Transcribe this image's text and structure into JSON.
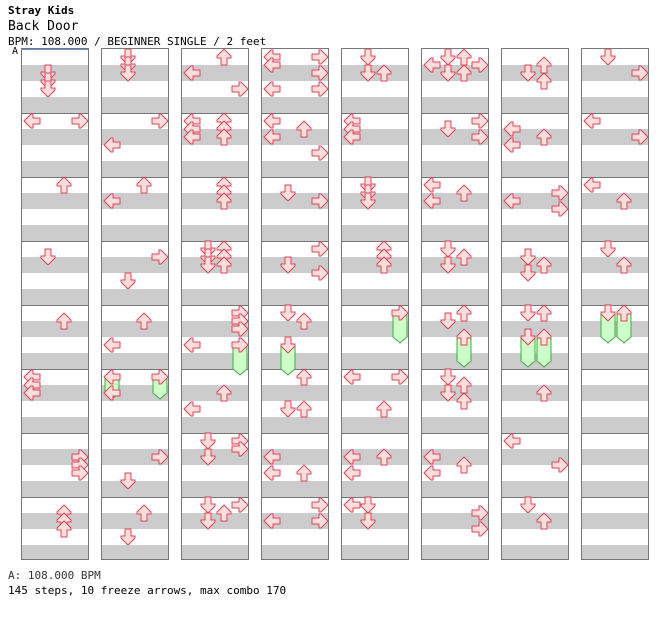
{
  "header": {
    "artist": "Stray Kids",
    "title": "Back Door",
    "meta": "BPM: 108.000 / BEGINNER SINGLE / 2 feet"
  },
  "bpm_marker": {
    "label": "A"
  },
  "footer": {
    "bpm_line": "A: 108.000 BPM",
    "summary": "145 steps, 10 freeze arrows, max combo 170"
  },
  "colors": {
    "stripe": "#cccccc",
    "arrow_fill": "#ffdede",
    "arrow_stroke": "#dd4455",
    "freeze_fill": "#ccffcc",
    "freeze_stroke": "#44aa44"
  },
  "chart": {
    "lanes": [
      "left",
      "down",
      "up",
      "right"
    ],
    "columns": [
      {
        "notes": [
          {
            "t": 2,
            "l": 1
          },
          {
            "t": 3,
            "l": 1
          },
          {
            "t": 4,
            "l": 1
          },
          {
            "t": 8,
            "l": 0
          },
          {
            "t": 8,
            "l": 3
          },
          {
            "t": 16,
            "l": 2
          },
          {
            "t": 25,
            "l": 1
          },
          {
            "t": 33,
            "l": 2
          },
          {
            "t": 40,
            "l": 0
          },
          {
            "t": 41,
            "l": 0
          },
          {
            "t": 42,
            "l": 0
          },
          {
            "t": 50,
            "l": 3
          },
          {
            "t": 51,
            "l": 3
          },
          {
            "t": 52,
            "l": 3
          },
          {
            "t": 57,
            "l": 2
          },
          {
            "t": 58,
            "l": 2
          },
          {
            "t": 59,
            "l": 2
          }
        ],
        "freezes": []
      },
      {
        "notes": [
          {
            "t": 0,
            "l": 1
          },
          {
            "t": 1,
            "l": 1
          },
          {
            "t": 2,
            "l": 1
          },
          {
            "t": 8,
            "l": 3
          },
          {
            "t": 11,
            "l": 0
          },
          {
            "t": 16,
            "l": 2
          },
          {
            "t": 18,
            "l": 0
          },
          {
            "t": 25,
            "l": 3
          },
          {
            "t": 28,
            "l": 1
          },
          {
            "t": 33,
            "l": 2
          },
          {
            "t": 36,
            "l": 0
          },
          {
            "t": 40,
            "l": 0
          },
          {
            "t": 40,
            "l": 3
          },
          {
            "t": 42,
            "l": 0
          },
          {
            "t": 50,
            "l": 3
          },
          {
            "t": 53,
            "l": 1
          },
          {
            "t": 57,
            "l": 2
          },
          {
            "t": 60,
            "l": 1
          }
        ],
        "freezes": [
          {
            "t": 40,
            "l": 0,
            "end": 42
          },
          {
            "t": 40,
            "l": 3,
            "end": 42
          }
        ]
      },
      {
        "notes": [
          {
            "t": 0,
            "l": 2
          },
          {
            "t": 2,
            "l": 0
          },
          {
            "t": 4,
            "l": 3
          },
          {
            "t": 8,
            "l": 0
          },
          {
            "t": 8,
            "l": 2
          },
          {
            "t": 9,
            "l": 0
          },
          {
            "t": 9,
            "l": 2
          },
          {
            "t": 10,
            "l": 0
          },
          {
            "t": 10,
            "l": 2
          },
          {
            "t": 16,
            "l": 2
          },
          {
            "t": 17,
            "l": 2
          },
          {
            "t": 18,
            "l": 2
          },
          {
            "t": 24,
            "l": 1
          },
          {
            "t": 24,
            "l": 2
          },
          {
            "t": 25,
            "l": 1
          },
          {
            "t": 25,
            "l": 2
          },
          {
            "t": 26,
            "l": 1
          },
          {
            "t": 26,
            "l": 2
          },
          {
            "t": 32,
            "l": 3
          },
          {
            "t": 33,
            "l": 3
          },
          {
            "t": 34,
            "l": 3
          },
          {
            "t": 36,
            "l": 0
          },
          {
            "t": 36,
            "l": 3
          },
          {
            "t": 42,
            "l": 2
          },
          {
            "t": 44,
            "l": 0
          },
          {
            "t": 48,
            "l": 1
          },
          {
            "t": 48,
            "l": 3
          },
          {
            "t": 49,
            "l": 3
          },
          {
            "t": 50,
            "l": 1
          },
          {
            "t": 56,
            "l": 1
          },
          {
            "t": 56,
            "l": 3
          },
          {
            "t": 57,
            "l": 2
          },
          {
            "t": 58,
            "l": 1
          }
        ],
        "freezes": [
          {
            "t": 36,
            "l": 3,
            "end": 39
          }
        ]
      },
      {
        "notes": [
          {
            "t": 0,
            "l": 0
          },
          {
            "t": 0,
            "l": 3
          },
          {
            "t": 1,
            "l": 0
          },
          {
            "t": 2,
            "l": 3
          },
          {
            "t": 4,
            "l": 0
          },
          {
            "t": 4,
            "l": 3
          },
          {
            "t": 8,
            "l": 0
          },
          {
            "t": 9,
            "l": 2
          },
          {
            "t": 10,
            "l": 0
          },
          {
            "t": 12,
            "l": 3
          },
          {
            "t": 17,
            "l": 1
          },
          {
            "t": 18,
            "l": 3
          },
          {
            "t": 24,
            "l": 3
          },
          {
            "t": 26,
            "l": 1
          },
          {
            "t": 27,
            "l": 3
          },
          {
            "t": 32,
            "l": 1
          },
          {
            "t": 33,
            "l": 2
          },
          {
            "t": 36,
            "l": 1
          },
          {
            "t": 40,
            "l": 2
          },
          {
            "t": 44,
            "l": 1
          },
          {
            "t": 44,
            "l": 2
          },
          {
            "t": 50,
            "l": 0
          },
          {
            "t": 52,
            "l": 0
          },
          {
            "t": 52,
            "l": 2
          },
          {
            "t": 56,
            "l": 3
          },
          {
            "t": 58,
            "l": 0
          },
          {
            "t": 58,
            "l": 3
          }
        ],
        "freezes": [
          {
            "t": 36,
            "l": 1,
            "end": 39
          }
        ]
      },
      {
        "notes": [
          {
            "t": 0,
            "l": 1
          },
          {
            "t": 2,
            "l": 1
          },
          {
            "t": 2,
            "l": 2
          },
          {
            "t": 8,
            "l": 0
          },
          {
            "t": 9,
            "l": 0
          },
          {
            "t": 10,
            "l": 0
          },
          {
            "t": 16,
            "l": 1
          },
          {
            "t": 17,
            "l": 1
          },
          {
            "t": 18,
            "l": 1
          },
          {
            "t": 24,
            "l": 2
          },
          {
            "t": 25,
            "l": 2
          },
          {
            "t": 26,
            "l": 2
          },
          {
            "t": 32,
            "l": 3
          },
          {
            "t": 40,
            "l": 0
          },
          {
            "t": 40,
            "l": 3
          },
          {
            "t": 44,
            "l": 2
          },
          {
            "t": 50,
            "l": 0
          },
          {
            "t": 50,
            "l": 2
          },
          {
            "t": 52,
            "l": 0
          },
          {
            "t": 56,
            "l": 0
          },
          {
            "t": 56,
            "l": 1
          },
          {
            "t": 58,
            "l": 1
          }
        ],
        "freezes": [
          {
            "t": 32,
            "l": 3,
            "end": 35
          }
        ]
      },
      {
        "notes": [
          {
            "t": 0,
            "l": 1
          },
          {
            "t": 0,
            "l": 2
          },
          {
            "t": 1,
            "l": 0
          },
          {
            "t": 1,
            "l": 3
          },
          {
            "t": 2,
            "l": 1
          },
          {
            "t": 2,
            "l": 2
          },
          {
            "t": 8,
            "l": 3
          },
          {
            "t": 9,
            "l": 1
          },
          {
            "t": 10,
            "l": 3
          },
          {
            "t": 16,
            "l": 0
          },
          {
            "t": 17,
            "l": 2
          },
          {
            "t": 18,
            "l": 0
          },
          {
            "t": 24,
            "l": 1
          },
          {
            "t": 25,
            "l": 2
          },
          {
            "t": 26,
            "l": 1
          },
          {
            "t": 32,
            "l": 2
          },
          {
            "t": 33,
            "l": 1
          },
          {
            "t": 35,
            "l": 2
          },
          {
            "t": 40,
            "l": 1
          },
          {
            "t": 41,
            "l": 2
          },
          {
            "t": 42,
            "l": 1
          },
          {
            "t": 43,
            "l": 2
          },
          {
            "t": 50,
            "l": 0
          },
          {
            "t": 51,
            "l": 2
          },
          {
            "t": 52,
            "l": 0
          },
          {
            "t": 57,
            "l": 3
          },
          {
            "t": 59,
            "l": 3
          }
        ],
        "freezes": [
          {
            "t": 35,
            "l": 2,
            "end": 38
          }
        ]
      },
      {
        "notes": [
          {
            "t": 1,
            "l": 2
          },
          {
            "t": 2,
            "l": 1
          },
          {
            "t": 3,
            "l": 2
          },
          {
            "t": 9,
            "l": 0
          },
          {
            "t": 10,
            "l": 2
          },
          {
            "t": 11,
            "l": 0
          },
          {
            "t": 17,
            "l": 3
          },
          {
            "t": 18,
            "l": 0
          },
          {
            "t": 19,
            "l": 3
          },
          {
            "t": 25,
            "l": 1
          },
          {
            "t": 26,
            "l": 2
          },
          {
            "t": 27,
            "l": 1
          },
          {
            "t": 32,
            "l": 1
          },
          {
            "t": 32,
            "l": 2
          },
          {
            "t": 35,
            "l": 1
          },
          {
            "t": 35,
            "l": 2
          },
          {
            "t": 42,
            "l": 2
          },
          {
            "t": 48,
            "l": 0
          },
          {
            "t": 51,
            "l": 3
          },
          {
            "t": 56,
            "l": 1
          },
          {
            "t": 58,
            "l": 2
          }
        ],
        "freezes": [
          {
            "t": 35,
            "l": 1,
            "end": 38
          },
          {
            "t": 35,
            "l": 2,
            "end": 38
          }
        ]
      },
      {
        "notes": [
          {
            "t": 0,
            "l": 1
          },
          {
            "t": 2,
            "l": 3
          },
          {
            "t": 8,
            "l": 0
          },
          {
            "t": 10,
            "l": 3
          },
          {
            "t": 16,
            "l": 0
          },
          {
            "t": 18,
            "l": 2
          },
          {
            "t": 24,
            "l": 1
          },
          {
            "t": 26,
            "l": 2
          },
          {
            "t": 32,
            "l": 1
          },
          {
            "t": 32,
            "l": 2
          }
        ],
        "freezes": [
          {
            "t": 32,
            "l": 1,
            "end": 35
          },
          {
            "t": 32,
            "l": 2,
            "end": 35
          }
        ]
      }
    ]
  }
}
